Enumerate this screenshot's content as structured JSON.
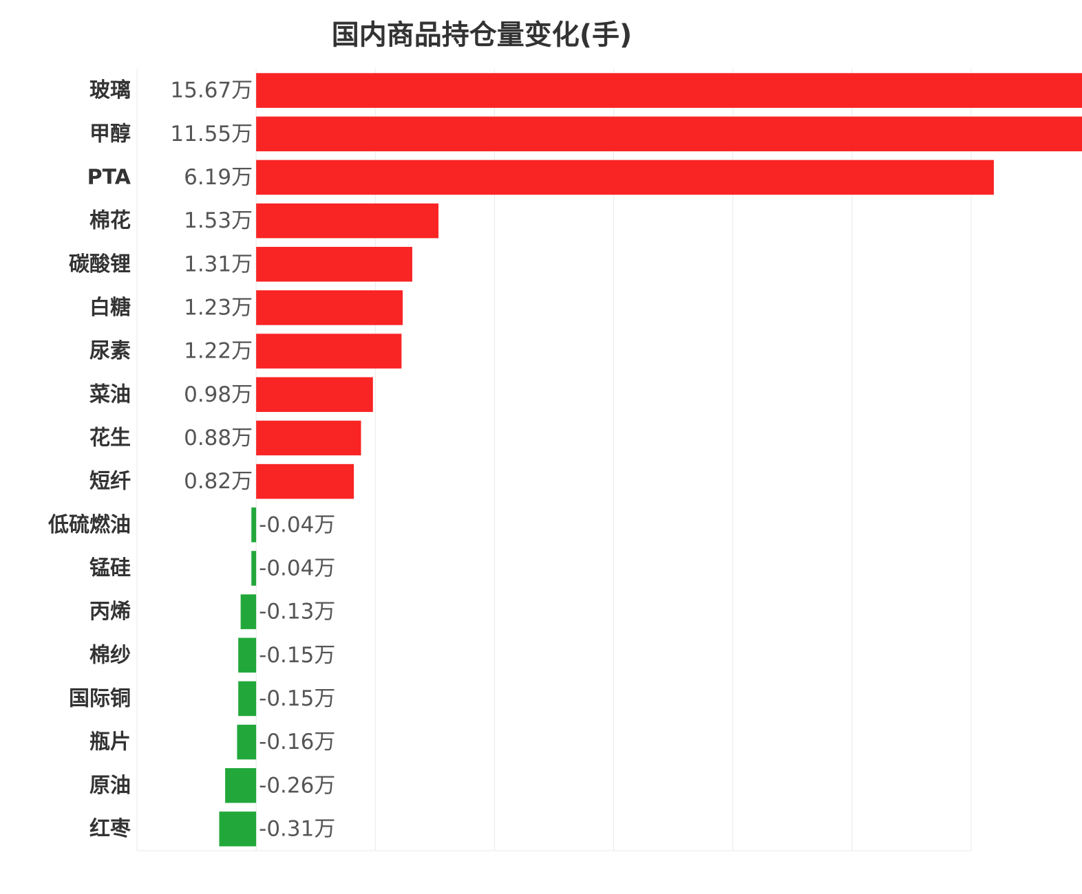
{
  "chart_data": {
    "type": "bar",
    "orientation": "horizontal",
    "title": "国内商品持仓量变化(手)",
    "xlabel": "",
    "ylabel": "",
    "unit_suffix": "万",
    "xlim": [
      -1,
      6
    ],
    "grid": true,
    "categories": [
      "玻璃",
      "甲醇",
      "PTA",
      "棉花",
      "碳酸锂",
      "白糖",
      "尿素",
      "菜油",
      "花生",
      "短纤",
      "低硫燃油",
      "锰硅",
      "丙烯",
      "棉纱",
      "国际铜",
      "瓶片",
      "原油",
      "红枣"
    ],
    "values": [
      15.67,
      11.55,
      6.19,
      1.53,
      1.31,
      1.23,
      1.22,
      0.98,
      0.88,
      0.82,
      -0.04,
      -0.04,
      -0.13,
      -0.15,
      -0.15,
      -0.16,
      -0.26,
      -0.31
    ],
    "value_labels": [
      "15.67万",
      "11.55万",
      "6.19万",
      "1.53万",
      "1.31万",
      "1.23万",
      "1.22万",
      "0.98万",
      "0.88万",
      "0.82万",
      "-0.04万",
      "-0.04万",
      "-0.13万",
      "-0.15万",
      "-0.15万",
      "-0.16万",
      "-0.26万",
      "-0.31万"
    ],
    "colors": {
      "positive": "#f92424",
      "negative": "#22a83a",
      "grid": "#e8e8e8"
    }
  }
}
